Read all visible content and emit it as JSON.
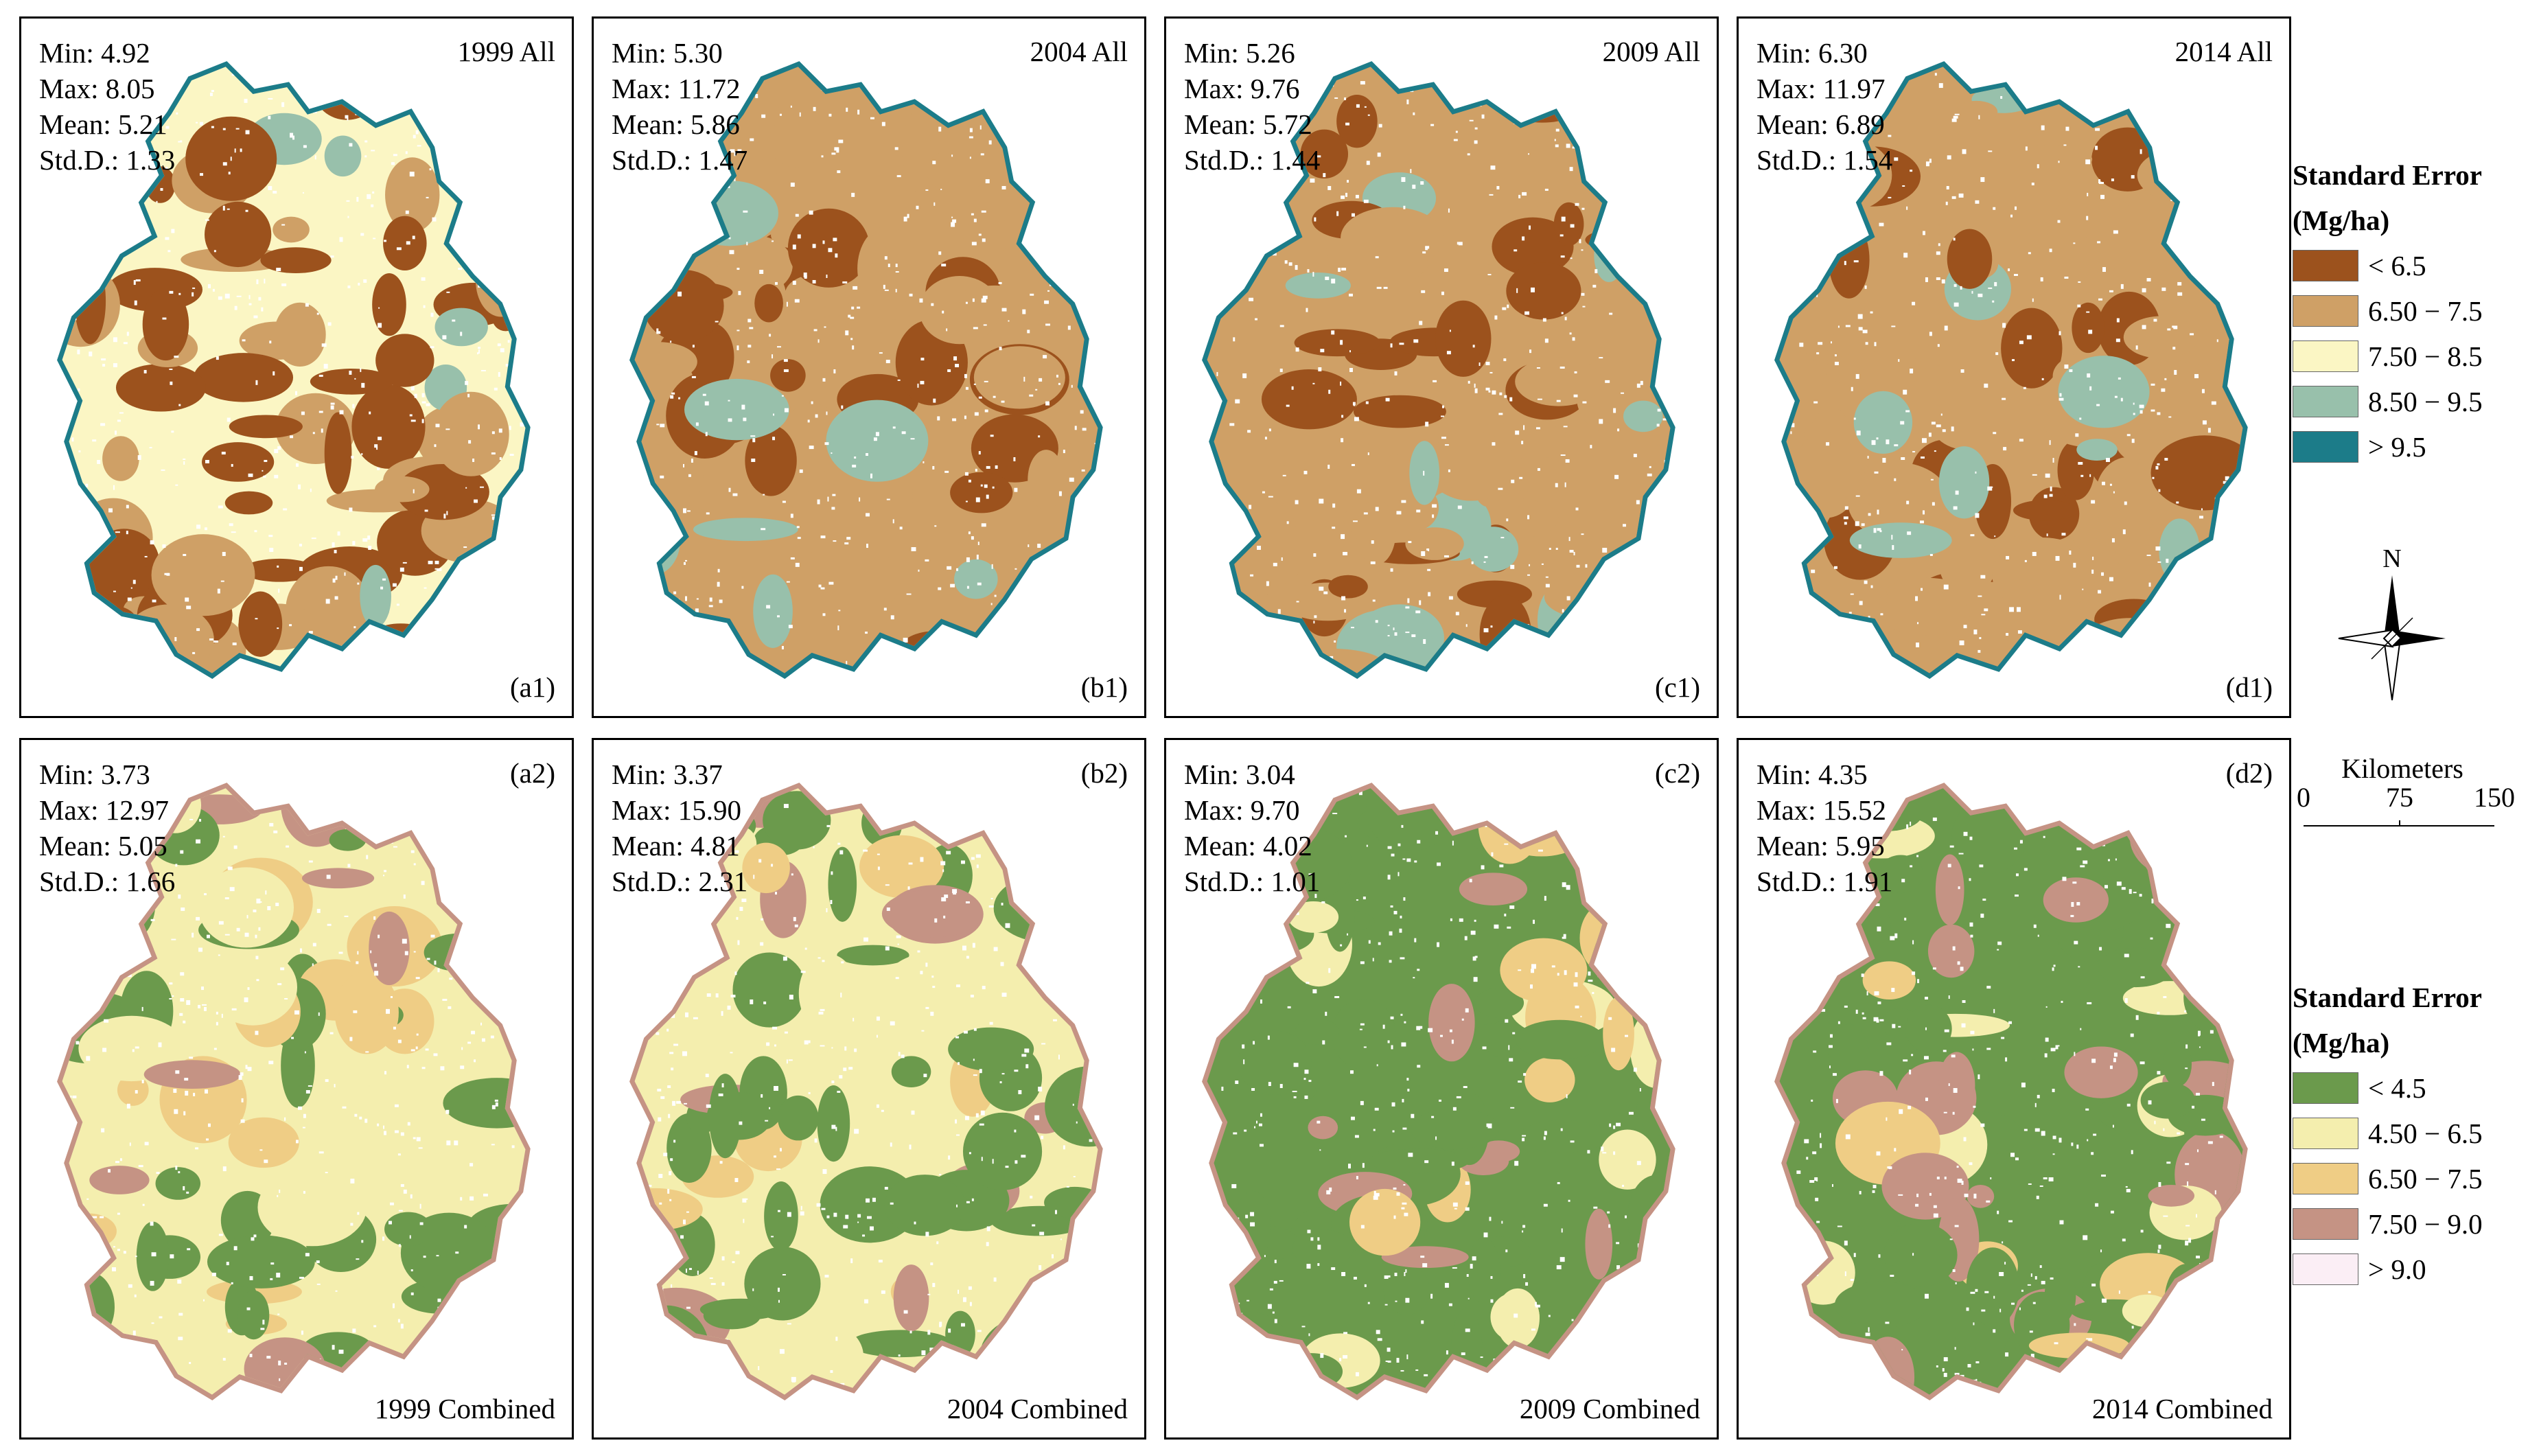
{
  "panels_top": [
    {
      "id": "a1",
      "label": "(a1)",
      "title": "1999 All",
      "min": "Min: 4.92",
      "max": "Max: 8.05",
      "mean": "Mean: 5.21",
      "std": "Std.D.: 1.33"
    },
    {
      "id": "b1",
      "label": "(b1)",
      "title": "2004 All",
      "min": "Min: 5.30",
      "max": "Max: 11.72",
      "mean": "Mean: 5.86",
      "std": "Std.D.: 1.47"
    },
    {
      "id": "c1",
      "label": "(c1)",
      "title": "2009 All",
      "min": "Min: 5.26",
      "max": "Max: 9.76",
      "mean": "Mean: 5.72",
      "std": "Std.D.: 1.44"
    },
    {
      "id": "d1",
      "label": "(d1)",
      "title": "2014 All",
      "min": "Min: 6.30",
      "max": "Max: 11.97",
      "mean": "Mean: 6.89",
      "std": "Std.D.: 1.54"
    }
  ],
  "panels_bottom": [
    {
      "id": "a2",
      "label": "(a2)",
      "title": "1999 Combined",
      "min": "Min: 3.73",
      "max": "Max: 12.97",
      "mean": "Mean: 5.05",
      "std": "Std.D.: 1.66"
    },
    {
      "id": "b2",
      "label": "(b2)",
      "title": "2004 Combined",
      "min": "Min: 3.37",
      "max": "Max: 15.90",
      "mean": "Mean: 4.81",
      "std": "Std.D.: 2.31"
    },
    {
      "id": "c2",
      "label": "(c2)",
      "title": "2009 Combined",
      "min": "Min: 3.04",
      "max": "Max: 9.70",
      "mean": "Mean: 4.02",
      "std": "Std.D.: 1.01"
    },
    {
      "id": "d2",
      "label": "(d2)",
      "title": "2014 Combined",
      "min": "Min: 4.35",
      "max": "Max: 15.52",
      "mean": "Mean: 5.95",
      "std": "Std.D.: 1.91"
    }
  ],
  "legend_top": {
    "title_line1": "Standard Error",
    "title_line2": "(Mg/ha)",
    "classes": [
      {
        "label": "< 6.5",
        "color": "#9c521d"
      },
      {
        "label": "6.50 − 7.5",
        "color": "#cfa066"
      },
      {
        "label": "7.50 − 8.5",
        "color": "#fbf6c4"
      },
      {
        "label": "8.50 − 9.5",
        "color": "#98c0ab"
      },
      {
        "label": "> 9.5",
        "color": "#1c7c89"
      }
    ]
  },
  "legend_bottom": {
    "title_line1": "Standard Error",
    "title_line2": "(Mg/ha)",
    "classes": [
      {
        "label": "< 4.5",
        "color": "#6b9a4c"
      },
      {
        "label": "4.50 − 6.5",
        "color": "#f4eeae"
      },
      {
        "label": "6.50 − 7.5",
        "color": "#efcd85"
      },
      {
        "label": "7.50 − 9.0",
        "color": "#c59384"
      },
      {
        "label": "> 9.0",
        "color": "#fbeef5"
      }
    ]
  },
  "north_arrow": {
    "label": "N"
  },
  "scale_bar": {
    "unit": "Kilometers",
    "ticks": [
      "0",
      "75",
      "150"
    ]
  }
}
